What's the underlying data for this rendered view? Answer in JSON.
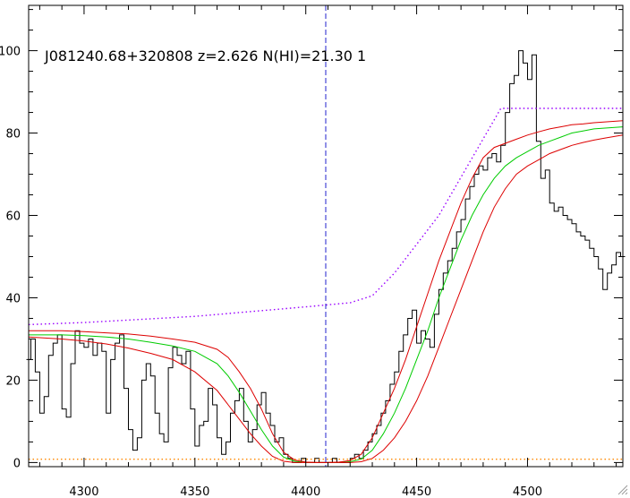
{
  "chart_data": {
    "type": "line",
    "title": "J081240.68+320808 z=2.626 N(HI)=21.30 1",
    "xlabel": "",
    "ylabel": "",
    "xlim": [
      4275,
      4543
    ],
    "ylim": [
      -1,
      111
    ],
    "x_ticks": [
      4300,
      4350,
      4400,
      4450,
      4500
    ],
    "y_ticks": [
      0,
      20,
      40,
      60,
      80,
      100
    ],
    "grid": false,
    "marker_line": {
      "x": 4409,
      "color": "#2222cc",
      "style": "dashed"
    },
    "colors": {
      "flux": "#000000",
      "model": "#00cc00",
      "model_bounds": "#dd0000",
      "continuum": "#9900ff",
      "error": "#ff8800",
      "marker": "#2222cc"
    },
    "series": [
      {
        "role": "flux",
        "style": "steps",
        "x": [
          4275,
          4277,
          4279,
          4281,
          4283,
          4285,
          4287,
          4289,
          4291,
          4293,
          4295,
          4297,
          4299,
          4301,
          4303,
          4305,
          4307,
          4309,
          4311,
          4313,
          4315,
          4317,
          4319,
          4321,
          4323,
          4325,
          4327,
          4329,
          4331,
          4333,
          4335,
          4337,
          4339,
          4341,
          4343,
          4345,
          4347,
          4349,
          4351,
          4353,
          4355,
          4357,
          4359,
          4361,
          4363,
          4365,
          4367,
          4369,
          4371,
          4373,
          4375,
          4377,
          4379,
          4381,
          4383,
          4385,
          4387,
          4389,
          4391,
          4393,
          4395,
          4397,
          4399,
          4401,
          4403,
          4405,
          4407,
          4409,
          4411,
          4413,
          4415,
          4417,
          4419,
          4421,
          4423,
          4425,
          4427,
          4429,
          4431,
          4433,
          4435,
          4437,
          4439,
          4441,
          4443,
          4445,
          4447,
          4449,
          4451,
          4453,
          4455,
          4457,
          4459,
          4461,
          4463,
          4465,
          4467,
          4469,
          4471,
          4473,
          4475,
          4477,
          4479,
          4481,
          4483,
          4485,
          4487,
          4489,
          4491,
          4493,
          4495,
          4497,
          4499,
          4501,
          4503,
          4505,
          4507,
          4509,
          4511,
          4513,
          4515,
          4517,
          4519,
          4521,
          4523,
          4525,
          4527,
          4529,
          4531,
          4533,
          4535,
          4537,
          4539,
          4541,
          4543
        ],
        "y": [
          25,
          30,
          22,
          12,
          16,
          26,
          29,
          31,
          13,
          11,
          24,
          32,
          29,
          28,
          30,
          26,
          29,
          27,
          12,
          25,
          29,
          31,
          18,
          8,
          3,
          6,
          20,
          24,
          21,
          12,
          7,
          5,
          23,
          28,
          26,
          24,
          27,
          13,
          4,
          9,
          10,
          18,
          14,
          6,
          2,
          5,
          12,
          15,
          18,
          10,
          5,
          8,
          14,
          17,
          12,
          9,
          5,
          6,
          2,
          1,
          0,
          0,
          1,
          0,
          0,
          1,
          0,
          0,
          0,
          1,
          0,
          0,
          0,
          1,
          2,
          1,
          3,
          5,
          7,
          9,
          12,
          15,
          19,
          22,
          27,
          31,
          35,
          37,
          29,
          32,
          30,
          28,
          36,
          42,
          46,
          49,
          52,
          56,
          59,
          64,
          67,
          70,
          72,
          71,
          74,
          75,
          73,
          77,
          85,
          92,
          94,
          100,
          97,
          93,
          99,
          78,
          69,
          71,
          63,
          61,
          62,
          60,
          59,
          58,
          56,
          55,
          54,
          52,
          50,
          47,
          42,
          46,
          48,
          51,
          50
        ],
        "stroke": "#000000"
      },
      {
        "role": "model",
        "style": "smooth",
        "x": [
          4275,
          4290,
          4300,
          4310,
          4320,
          4330,
          4340,
          4350,
          4360,
          4365,
          4370,
          4375,
          4380,
          4385,
          4390,
          4395,
          4400,
          4405,
          4410,
          4415,
          4420,
          4425,
          4430,
          4435,
          4440,
          4445,
          4450,
          4455,
          4460,
          4465,
          4470,
          4475,
          4480,
          4485,
          4490,
          4495,
          4500,
          4505,
          4510,
          4515,
          4520,
          4525,
          4530,
          4535,
          4543
        ],
        "y": [
          31,
          31,
          30.8,
          30.5,
          30,
          29.2,
          28.3,
          27,
          24,
          21,
          17,
          12.5,
          8,
          4,
          1.3,
          0.3,
          0,
          0,
          0,
          0,
          0.2,
          0.8,
          3,
          7,
          12,
          18,
          25,
          32,
          40,
          47,
          54,
          60,
          65,
          69,
          72,
          74,
          75.5,
          77,
          78,
          79,
          80,
          80.5,
          81,
          81.2,
          81.5
        ],
        "stroke": "#00cc00"
      },
      {
        "role": "model-upper",
        "style": "smooth",
        "x": [
          4275,
          4290,
          4300,
          4310,
          4320,
          4330,
          4340,
          4350,
          4360,
          4365,
          4370,
          4375,
          4380,
          4385,
          4390,
          4395,
          4400,
          4405,
          4410,
          4415,
          4420,
          4425,
          4430,
          4435,
          4440,
          4445,
          4450,
          4455,
          4460,
          4465,
          4470,
          4475,
          4480,
          4485,
          4490,
          4495,
          4500,
          4505,
          4510,
          4515,
          4520,
          4525,
          4530,
          4535,
          4543
        ],
        "y": [
          32,
          32,
          31.8,
          31.5,
          31.2,
          30.7,
          30,
          29.2,
          27.5,
          25.5,
          22,
          18,
          13,
          7,
          2.5,
          0.6,
          0.1,
          0,
          0,
          0.1,
          0.5,
          2,
          6,
          12,
          18,
          25,
          33,
          41,
          49,
          56,
          63,
          69,
          74,
          76.5,
          77.5,
          78.5,
          79.5,
          80.3,
          81,
          81.5,
          82,
          82.2,
          82.5,
          82.7,
          83
        ],
        "stroke": "#dd0000"
      },
      {
        "role": "model-lower",
        "style": "smooth",
        "x": [
          4275,
          4290,
          4300,
          4310,
          4320,
          4330,
          4340,
          4350,
          4360,
          4365,
          4370,
          4375,
          4380,
          4385,
          4390,
          4395,
          4400,
          4405,
          4410,
          4415,
          4420,
          4425,
          4430,
          4435,
          4440,
          4445,
          4450,
          4455,
          4460,
          4465,
          4470,
          4475,
          4480,
          4485,
          4490,
          4495,
          4500,
          4505,
          4510,
          4515,
          4520,
          4525,
          4530,
          4535,
          4543
        ],
        "y": [
          30.5,
          30,
          29.5,
          28.8,
          27.8,
          26.5,
          25,
          22,
          17.5,
          14,
          10.5,
          7,
          4,
          1.5,
          0.3,
          0,
          0,
          0,
          0,
          0,
          0,
          0.2,
          1,
          3,
          6,
          10,
          15,
          21,
          28,
          35,
          42,
          49,
          56,
          62,
          66.5,
          70,
          72,
          73.5,
          75,
          76,
          77,
          77.7,
          78.3,
          78.8,
          79.5
        ],
        "stroke": "#dd0000"
      },
      {
        "role": "continuum",
        "style": "dotted",
        "x": [
          4275,
          4300,
          4350,
          4400,
          4420,
          4430,
          4440,
          4460,
          4488,
          4500,
          4543
        ],
        "y": [
          33.5,
          34,
          35.5,
          37.8,
          38.8,
          40.5,
          46,
          60,
          86,
          86,
          86
        ],
        "stroke": "#9900ff"
      },
      {
        "role": "error",
        "style": "dotted",
        "x": [
          4275,
          4543
        ],
        "y": [
          0.8,
          0.8
        ],
        "stroke": "#ff8800"
      }
    ]
  }
}
